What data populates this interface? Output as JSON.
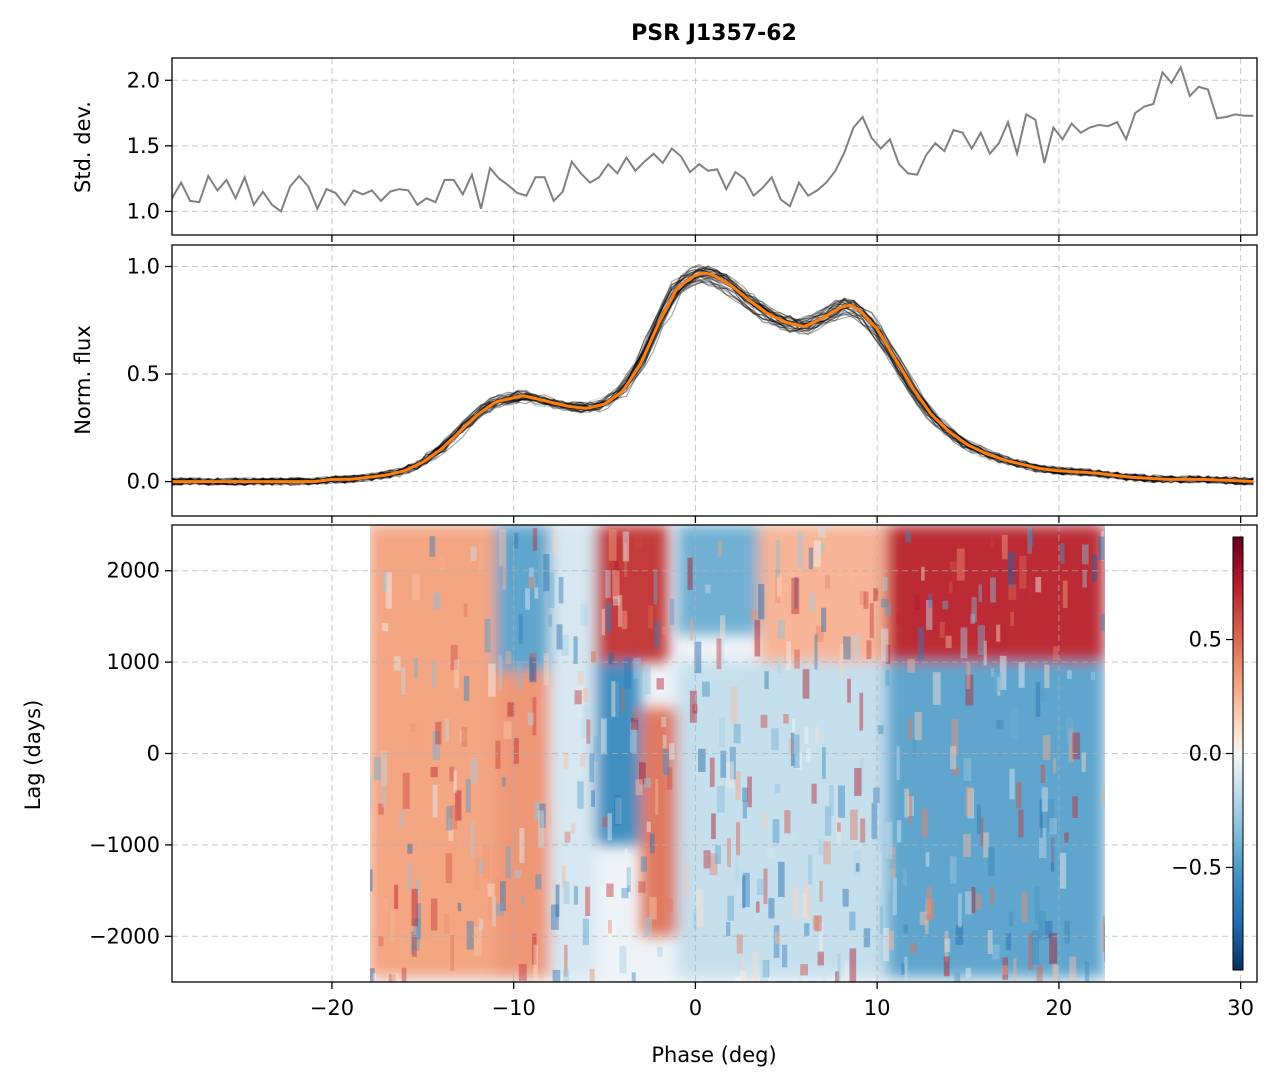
{
  "title": "PSR J1357-62",
  "chart_data": [
    {
      "type": "line",
      "name": "std-dev-panel",
      "ylabel": "Std. dev.",
      "xlim": [
        -28.8,
        30.9
      ],
      "ylim": [
        0.82,
        2.17
      ],
      "yticks": [
        1.0,
        1.5,
        2.0
      ],
      "ytick_labels": [
        "1.0",
        "1.5",
        "2.0"
      ],
      "grid": true,
      "line_color": "#808080",
      "phase_deg": [
        -28.8,
        -28.3,
        -27.8,
        -27.3,
        -26.8,
        -26.3,
        -25.8,
        -25.3,
        -24.8,
        -24.3,
        -23.8,
        -23.3,
        -22.8,
        -22.3,
        -21.8,
        -21.3,
        -20.8,
        -20.3,
        -19.8,
        -19.3,
        -18.8,
        -18.3,
        -17.8,
        -17.3,
        -16.8,
        -16.3,
        -15.8,
        -15.3,
        -14.8,
        -14.3,
        -13.8,
        -13.3,
        -12.8,
        -12.3,
        -11.8,
        -11.3,
        -10.8,
        -10.3,
        -9.8,
        -9.3,
        -8.8,
        -8.3,
        -7.8,
        -7.3,
        -6.8,
        -6.3,
        -5.8,
        -5.3,
        -4.8,
        -4.3,
        -3.8,
        -3.3,
        -2.8,
        -2.3,
        -1.8,
        -1.3,
        -0.8,
        -0.3,
        0.2,
        0.7,
        1.2,
        1.7,
        2.2,
        2.7,
        3.2,
        3.7,
        4.2,
        4.7,
        5.2,
        5.7,
        6.2,
        6.7,
        7.2,
        7.7,
        8.2,
        8.7,
        9.2,
        9.7,
        10.2,
        10.7,
        11.2,
        11.7,
        12.2,
        12.7,
        13.2,
        13.7,
        14.2,
        14.7,
        15.2,
        15.7,
        16.2,
        16.7,
        17.2,
        17.7,
        18.2,
        18.7,
        19.2,
        19.7,
        20.2,
        20.7,
        21.2,
        21.7,
        22.2,
        22.7,
        23.2,
        23.7,
        24.2,
        24.7,
        25.2,
        25.7,
        26.2,
        26.7,
        27.2,
        27.7,
        28.2,
        28.7,
        29.2,
        29.7,
        30.2,
        30.7
      ],
      "std_dev": [
        1.1,
        1.22,
        1.08,
        1.07,
        1.27,
        1.16,
        1.24,
        1.1,
        1.26,
        1.05,
        1.15,
        1.05,
        1.0,
        1.19,
        1.27,
        1.19,
        1.02,
        1.17,
        1.14,
        1.05,
        1.16,
        1.13,
        1.16,
        1.08,
        1.15,
        1.17,
        1.16,
        1.05,
        1.1,
        1.07,
        1.24,
        1.24,
        1.13,
        1.28,
        1.02,
        1.33,
        1.25,
        1.2,
        1.14,
        1.12,
        1.26,
        1.26,
        1.08,
        1.15,
        1.38,
        1.29,
        1.22,
        1.26,
        1.36,
        1.29,
        1.41,
        1.31,
        1.38,
        1.44,
        1.37,
        1.48,
        1.42,
        1.3,
        1.36,
        1.31,
        1.32,
        1.17,
        1.3,
        1.25,
        1.12,
        1.18,
        1.26,
        1.09,
        1.04,
        1.22,
        1.12,
        1.16,
        1.22,
        1.31,
        1.45,
        1.64,
        1.72,
        1.56,
        1.48,
        1.55,
        1.36,
        1.29,
        1.28,
        1.43,
        1.52,
        1.46,
        1.62,
        1.6,
        1.48,
        1.6,
        1.44,
        1.52,
        1.68,
        1.44,
        1.74,
        1.7,
        1.37,
        1.64,
        1.55,
        1.67,
        1.6,
        1.64,
        1.66,
        1.65,
        1.68,
        1.55,
        1.75,
        1.8,
        1.82,
        2.06,
        1.98,
        2.1,
        1.88,
        1.95,
        1.93,
        1.71,
        1.72,
        1.74,
        1.73,
        1.73
      ]
    },
    {
      "type": "line",
      "name": "profile-panel",
      "ylabel": "Norm. flux",
      "xlim": [
        -28.8,
        30.9
      ],
      "ylim": [
        -0.16,
        1.1
      ],
      "yticks": [
        0.0,
        0.5,
        1.0
      ],
      "ytick_labels": [
        "0.0",
        "0.5",
        "1.0"
      ],
      "grid": true,
      "mean_color": "#ff7f0e",
      "epoch_color": "#000000",
      "phase_deg": [
        -28.8,
        -28.0,
        -27.0,
        -26.0,
        -25.0,
        -24.0,
        -23.0,
        -22.0,
        -21.0,
        -20.0,
        -19.0,
        -18.0,
        -17.0,
        -16.0,
        -15.0,
        -14.0,
        -13.0,
        -12.0,
        -11.0,
        -10.0,
        -9.5,
        -9.0,
        -8.0,
        -7.0,
        -6.0,
        -5.0,
        -4.0,
        -3.0,
        -2.0,
        -1.0,
        0.0,
        0.5,
        1.0,
        2.0,
        3.0,
        4.0,
        5.0,
        6.0,
        7.0,
        8.0,
        8.5,
        9.0,
        10.0,
        11.0,
        12.0,
        13.0,
        14.0,
        15.0,
        16.0,
        17.0,
        18.0,
        19.0,
        20.0,
        22.0,
        24.0,
        26.0,
        28.0,
        30.9
      ],
      "mean_flux": [
        0.0,
        0.0,
        0.0,
        0.0,
        0.0,
        0.0,
        0.0,
        0.0,
        0.0,
        0.01,
        0.01,
        0.02,
        0.03,
        0.05,
        0.09,
        0.15,
        0.23,
        0.31,
        0.37,
        0.39,
        0.4,
        0.39,
        0.37,
        0.35,
        0.34,
        0.36,
        0.42,
        0.55,
        0.74,
        0.9,
        0.96,
        0.97,
        0.96,
        0.91,
        0.84,
        0.78,
        0.74,
        0.72,
        0.76,
        0.81,
        0.82,
        0.8,
        0.71,
        0.57,
        0.43,
        0.31,
        0.23,
        0.17,
        0.13,
        0.1,
        0.08,
        0.06,
        0.05,
        0.04,
        0.02,
        0.01,
        0.01,
        0.0
      ]
    },
    {
      "type": "heatmap",
      "name": "correlation-panel",
      "xlabel": "Phase (deg)",
      "ylabel": "Lag (days)",
      "xlim": [
        -28.8,
        30.9
      ],
      "ylim": [
        -2500,
        2500
      ],
      "data_extent_x": [
        -18.0,
        22.5
      ],
      "data_extent_y": [
        -2450,
        2500
      ],
      "xticks": [
        -20,
        -10,
        0,
        10,
        20,
        30
      ],
      "xtick_labels": [
        "−20",
        "−10",
        "0",
        "10",
        "20",
        "30"
      ],
      "yticks": [
        2000,
        1000,
        0,
        -1000,
        -2000
      ],
      "ytick_labels": [
        "2000",
        "1000",
        "0",
        "−1000",
        "−2000"
      ],
      "grid": true,
      "colormap": "RdBu_r",
      "vmin": -0.95,
      "vmax": 0.95,
      "colorbar_ticks": [
        0.5,
        0.0,
        -0.5
      ],
      "colorbar_labels": [
        "0.5",
        "0.0",
        "−0.5"
      ],
      "bands": [
        {
          "x": [
            -18.0,
            -11.0
          ],
          "y": [
            -2450,
            2500
          ],
          "value": 0.3
        },
        {
          "x": [
            -11.0,
            -8.0
          ],
          "y": [
            900,
            2500
          ],
          "value": -0.45
        },
        {
          "x": [
            -11.0,
            -8.0
          ],
          "y": [
            -2450,
            900
          ],
          "value": 0.35
        },
        {
          "x": [
            -8.0,
            -5.5
          ],
          "y": [
            -2450,
            2500
          ],
          "value": -0.1
        },
        {
          "x": [
            -5.5,
            -1.5
          ],
          "y": [
            1000,
            2500
          ],
          "value": 0.65
        },
        {
          "x": [
            -5.5,
            -3.0
          ],
          "y": [
            -1000,
            1000
          ],
          "value": -0.55
        },
        {
          "x": [
            -3.0,
            -1.0
          ],
          "y": [
            -2000,
            500
          ],
          "value": 0.45
        },
        {
          "x": [
            -1.0,
            3.5
          ],
          "y": [
            1300,
            2500
          ],
          "value": -0.4
        },
        {
          "x": [
            3.5,
            10.5
          ],
          "y": [
            1000,
            2500
          ],
          "value": 0.25
        },
        {
          "x": [
            -1.0,
            10.5
          ],
          "y": [
            -2450,
            1000
          ],
          "value": -0.15
        },
        {
          "x": [
            10.5,
            22.5
          ],
          "y": [
            1000,
            2500
          ],
          "value": 0.7
        },
        {
          "x": [
            10.5,
            22.5
          ],
          "y": [
            -2450,
            1000
          ],
          "value": -0.45
        }
      ]
    }
  ]
}
